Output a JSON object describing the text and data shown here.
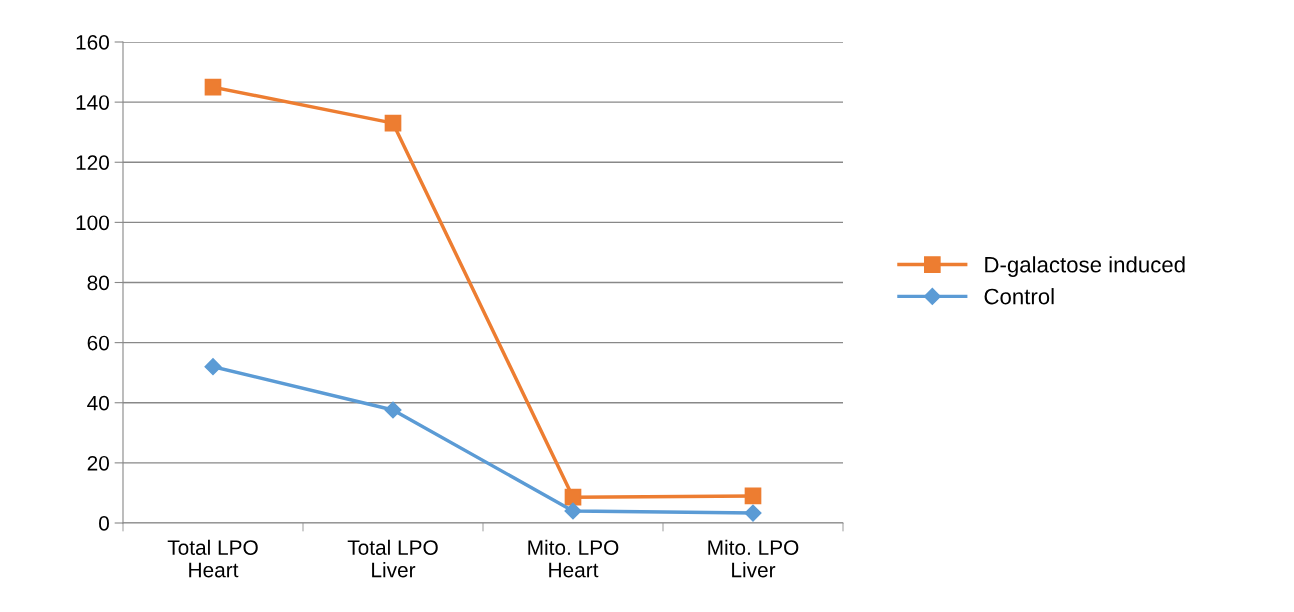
{
  "chart_data": {
    "type": "line",
    "categories": [
      "Total LPO\nHeart",
      "Total LPO\nLiver",
      "Mito. LPO\nHeart",
      "Mito. LPO\nLiver"
    ],
    "series": [
      {
        "name": "D-galactose induced",
        "color": "#ed7d31",
        "marker": "square",
        "values": [
          145,
          133,
          8.6,
          9
        ]
      },
      {
        "name": "Control",
        "color": "#5b9bd5",
        "marker": "diamond",
        "values": [
          52,
          37.6,
          4,
          3.3
        ]
      }
    ],
    "ylim": [
      0,
      160
    ],
    "yticks": [
      0,
      20,
      40,
      60,
      80,
      100,
      120,
      140,
      160
    ],
    "grid": "y",
    "legend": "right",
    "line_style": "solid"
  }
}
